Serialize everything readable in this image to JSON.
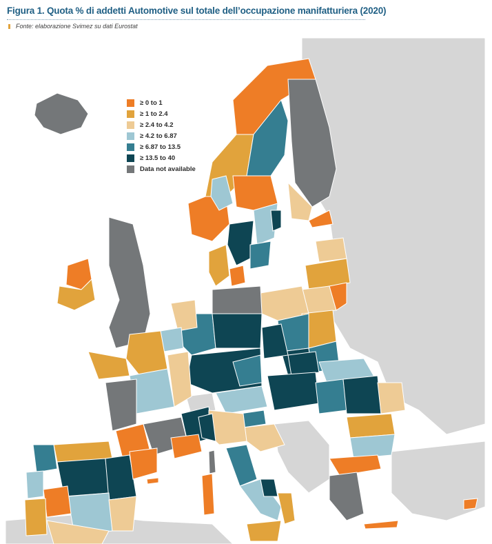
{
  "figure": {
    "title": "Figura 1. Quota % di addetti Automotive sul totale dell’occupazione manifatturiera (2020)",
    "source": "Fonte: elaborazione Svimez su dati Eurostat"
  },
  "legend": {
    "items": [
      {
        "label": "≥ 0 to 1",
        "color": "#ee7d26"
      },
      {
        "label": "≥ 1 to 2.4",
        "color": "#e1a33c"
      },
      {
        "label": "≥ 2.4 to 4.2",
        "color": "#eecb95"
      },
      {
        "label": "≥ 4.2 to 6.87",
        "color": "#9ec7d3"
      },
      {
        "label": "≥ 6.87 to 13.5",
        "color": "#357e91"
      },
      {
        "label": "≥ 13.5 to 40",
        "color": "#0e4553"
      },
      {
        "label": "Data not available",
        "color": "#747779"
      }
    ]
  },
  "map": {
    "background_color": "#ffffff",
    "outside_region_color": "#d6d6d6",
    "sea_color": "#ffffff"
  }
}
